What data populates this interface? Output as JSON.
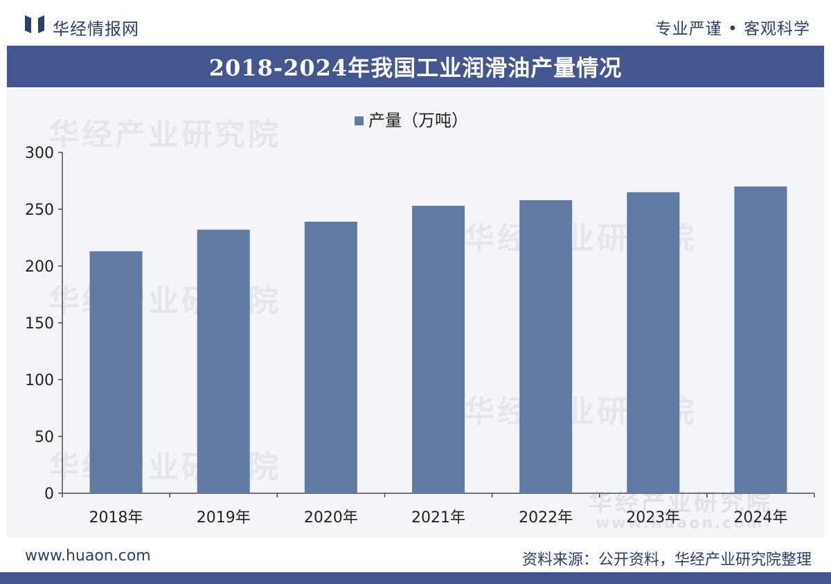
{
  "header": {
    "brand": "华经情报网",
    "slogan": "专业严谨 • 客观科学",
    "title": "2018-2024年我国工业润滑油产量情况"
  },
  "footer": {
    "site": "www.huaon.com",
    "source": "资料来源：公开资料，华经产业研究院整理"
  },
  "watermark": {
    "text": "华经产业研究院",
    "url": "www.huaon.com"
  },
  "colors": {
    "bar": "#617aa3",
    "title_bg": "#44568f",
    "text": "#2b3f6b"
  },
  "chart_data": {
    "type": "bar",
    "title": "2018-2024年我国工业润滑油产量情况",
    "categories": [
      "2018年",
      "2019年",
      "2020年",
      "2021年",
      "2022年",
      "2023年",
      "2024年"
    ],
    "series": [
      {
        "name": "产量（万吨）",
        "values": [
          213,
          232,
          239,
          253,
          258,
          265,
          270
        ]
      }
    ],
    "ylim": [
      0,
      300
    ],
    "yticks": [
      0,
      50,
      100,
      150,
      200,
      250,
      300
    ],
    "xlabel": "",
    "ylabel": "",
    "legend": "top-center",
    "grid": false
  }
}
